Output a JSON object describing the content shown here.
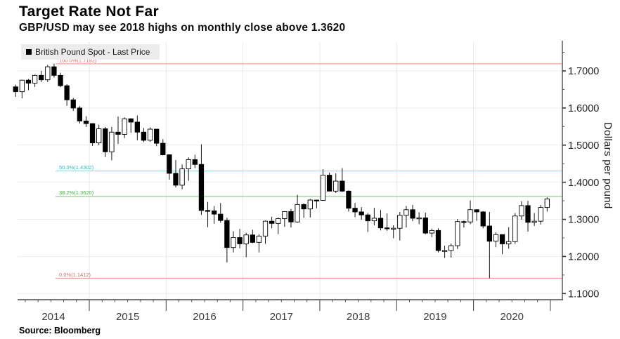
{
  "header": {
    "title": "Target Rate Not Far",
    "subtitle": "GBP/USD may see 2018 highs on monthly close above 1.3620"
  },
  "legend": {
    "label": "British Pound Spot - Last Price",
    "marker_color": "#000000"
  },
  "source": {
    "label": "Source: Bloomberg"
  },
  "y_axis": {
    "title": "Dollars per pound",
    "tick_labels": [
      "1.7000",
      "1.6000",
      "1.5000",
      "1.4000",
      "1.3000",
      "1.2000",
      "1.1000"
    ]
  },
  "x_axis": {
    "years": [
      "2014",
      "2015",
      "2016",
      "2017",
      "2018",
      "2019",
      "2020"
    ]
  },
  "fib_levels": [
    {
      "label": "100.0%(1.7192)",
      "percent": "100.0%",
      "value": 1.7192,
      "line_color": "#f2a09c",
      "label_color": "#e06a64"
    },
    {
      "label": "50.0%(1.4302)",
      "percent": "50.0%",
      "value": 1.4302,
      "line_color": "#82e4dc",
      "label_color": "#2cbcbc"
    },
    {
      "label": "38.2%(1.3620)",
      "percent": "38.2%",
      "value": 1.362,
      "line_color": "#8ad98a",
      "label_color": "#3fae3f"
    },
    {
      "label": "0.0%(1.1412)",
      "percent": "0.0%",
      "value": 1.1412,
      "line_color": "#f2a09c",
      "label_color": "#e06a64"
    }
  ],
  "chart_data": {
    "type": "candlestick",
    "title": "Target Rate Not Far",
    "series_name": "British Pound Spot - Last Price",
    "frequency": "monthly",
    "start_month": "2014-01",
    "ylim": [
      1.0835,
      1.7775
    ],
    "y_ticks": [
      1.1,
      1.2,
      1.3,
      1.4,
      1.5,
      1.6,
      1.7
    ],
    "grid": "light horizontal at y ticks, light vertical at year boundaries",
    "legend_position": "top-left",
    "columns": [
      "open",
      "high",
      "low",
      "close"
    ],
    "ohlc": [
      [
        1.657,
        1.663,
        1.63,
        1.644
      ],
      [
        1.644,
        1.676,
        1.626,
        1.675
      ],
      [
        1.675,
        1.678,
        1.648,
        1.667
      ],
      [
        1.667,
        1.69,
        1.657,
        1.688
      ],
      [
        1.688,
        1.7,
        1.67,
        1.676
      ],
      [
        1.676,
        1.716,
        1.67,
        1.711
      ],
      [
        1.711,
        1.7192,
        1.682,
        1.688
      ],
      [
        1.688,
        1.695,
        1.656,
        1.66
      ],
      [
        1.66,
        1.664,
        1.606,
        1.622
      ],
      [
        1.622,
        1.627,
        1.592,
        1.6
      ],
      [
        1.6,
        1.605,
        1.558,
        1.565
      ],
      [
        1.565,
        1.578,
        1.549,
        1.558
      ],
      [
        1.558,
        1.559,
        1.498,
        1.506
      ],
      [
        1.506,
        1.555,
        1.5,
        1.544
      ],
      [
        1.544,
        1.549,
        1.468,
        1.482
      ],
      [
        1.482,
        1.549,
        1.459,
        1.535
      ],
      [
        1.535,
        1.577,
        1.503,
        1.529
      ],
      [
        1.529,
        1.575,
        1.519,
        1.571
      ],
      [
        1.571,
        1.572,
        1.533,
        1.562
      ],
      [
        1.562,
        1.58,
        1.513,
        1.535
      ],
      [
        1.535,
        1.546,
        1.508,
        1.513
      ],
      [
        1.513,
        1.548,
        1.509,
        1.543
      ],
      [
        1.543,
        1.544,
        1.497,
        1.505
      ],
      [
        1.505,
        1.516,
        1.472,
        1.474
      ],
      [
        1.474,
        1.475,
        1.407,
        1.424
      ],
      [
        1.424,
        1.46,
        1.386,
        1.392
      ],
      [
        1.392,
        1.448,
        1.381,
        1.436
      ],
      [
        1.436,
        1.467,
        1.404,
        1.461
      ],
      [
        1.461,
        1.474,
        1.438,
        1.448
      ],
      [
        1.448,
        1.502,
        1.312,
        1.324
      ],
      [
        1.324,
        1.347,
        1.279,
        1.323
      ],
      [
        1.323,
        1.336,
        1.288,
        1.314
      ],
      [
        1.314,
        1.344,
        1.291,
        1.297
      ],
      [
        1.297,
        1.304,
        1.184,
        1.224
      ],
      [
        1.224,
        1.268,
        1.211,
        1.251
      ],
      [
        1.251,
        1.274,
        1.222,
        1.234
      ],
      [
        1.234,
        1.264,
        1.198,
        1.258
      ],
      [
        1.258,
        1.272,
        1.236,
        1.238
      ],
      [
        1.238,
        1.26,
        1.211,
        1.255
      ],
      [
        1.255,
        1.297,
        1.234,
        1.295
      ],
      [
        1.295,
        1.307,
        1.276,
        1.289
      ],
      [
        1.289,
        1.305,
        1.26,
        1.302
      ],
      [
        1.302,
        1.321,
        1.28,
        1.321
      ],
      [
        1.321,
        1.328,
        1.278,
        1.293
      ],
      [
        1.293,
        1.366,
        1.291,
        1.34
      ],
      [
        1.34,
        1.343,
        1.304,
        1.328
      ],
      [
        1.328,
        1.355,
        1.305,
        1.352
      ],
      [
        1.352,
        1.353,
        1.33,
        1.351
      ],
      [
        1.351,
        1.435,
        1.35,
        1.419
      ],
      [
        1.419,
        1.426,
        1.376,
        1.376
      ],
      [
        1.376,
        1.424,
        1.371,
        1.403
      ],
      [
        1.403,
        1.438,
        1.374,
        1.376
      ],
      [
        1.376,
        1.378,
        1.321,
        1.33
      ],
      [
        1.33,
        1.344,
        1.306,
        1.32
      ],
      [
        1.32,
        1.333,
        1.299,
        1.312
      ],
      [
        1.312,
        1.317,
        1.266,
        1.296
      ],
      [
        1.296,
        1.331,
        1.284,
        1.303
      ],
      [
        1.303,
        1.325,
        1.27,
        1.277
      ],
      [
        1.277,
        1.316,
        1.269,
        1.275
      ],
      [
        1.275,
        1.284,
        1.249,
        1.276
      ],
      [
        1.276,
        1.32,
        1.243,
        1.311
      ],
      [
        1.311,
        1.336,
        1.278,
        1.326
      ],
      [
        1.326,
        1.339,
        1.295,
        1.303
      ],
      [
        1.303,
        1.319,
        1.287,
        1.304
      ],
      [
        1.304,
        1.318,
        1.26,
        1.263
      ],
      [
        1.263,
        1.275,
        1.252,
        1.27
      ],
      [
        1.27,
        1.276,
        1.211,
        1.216
      ],
      [
        1.216,
        1.229,
        1.196,
        1.216
      ],
      [
        1.216,
        1.235,
        1.197,
        1.229
      ],
      [
        1.229,
        1.301,
        1.22,
        1.294
      ],
      [
        1.294,
        1.297,
        1.278,
        1.293
      ],
      [
        1.293,
        1.351,
        1.287,
        1.326
      ],
      [
        1.326,
        1.327,
        1.296,
        1.32
      ],
      [
        1.32,
        1.322,
        1.276,
        1.282
      ],
      [
        1.282,
        1.32,
        1.1412,
        1.241
      ],
      [
        1.241,
        1.265,
        1.225,
        1.259
      ],
      [
        1.259,
        1.259,
        1.206,
        1.234
      ],
      [
        1.234,
        1.279,
        1.221,
        1.24
      ],
      [
        1.24,
        1.317,
        1.234,
        1.309
      ],
      [
        1.309,
        1.349,
        1.299,
        1.337
      ],
      [
        1.337,
        1.35,
        1.267,
        1.292
      ],
      [
        1.292,
        1.317,
        1.282,
        1.295
      ],
      [
        1.295,
        1.339,
        1.286,
        1.332
      ],
      [
        1.332,
        1.359,
        1.321,
        1.355
      ]
    ],
    "up_candle": "white hollow",
    "down_candle": "black filled"
  }
}
